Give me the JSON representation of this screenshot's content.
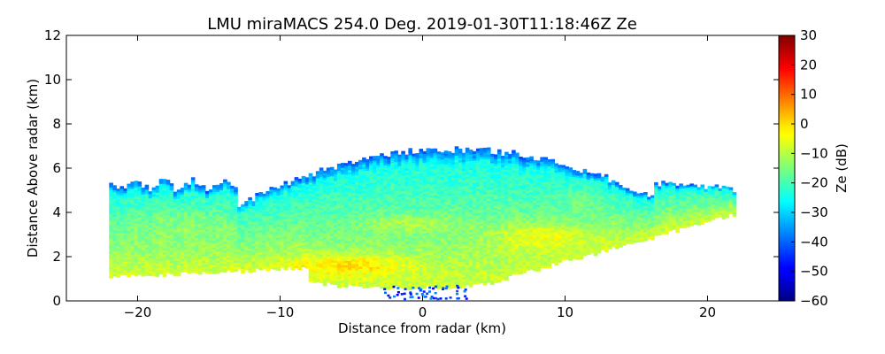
{
  "chart_data": {
    "type": "heatmap",
    "title": "LMU miraMACS 254.0 Deg. 2019-01-30T11:18:46Z  Ze",
    "xlabel": "Distance from radar (km)",
    "ylabel": "Distance Above radar  (km)",
    "xlim": [
      -25,
      25
    ],
    "ylim": [
      0,
      12
    ],
    "xticks": [
      -20,
      -10,
      0,
      10,
      20
    ],
    "yticks": [
      0,
      2,
      4,
      6,
      8,
      10,
      12
    ],
    "colorbar": {
      "label": "Ze (dB)",
      "range": [
        -60,
        30
      ],
      "ticks": [
        30,
        20,
        10,
        0,
        -10,
        -20,
        -30,
        -40,
        -50,
        -60
      ],
      "colormap": "jet"
    },
    "echo_region": {
      "description_units": "km",
      "left_edge_x": -22,
      "right_edge_x": 21.8,
      "top_height": 6.8,
      "bottom_height_at_center": 0.6,
      "slanted_base_right_start_x": 5,
      "slanted_base_right_end_height": 3.9,
      "typical_reflectivity_dB": [
        -25,
        -5
      ],
      "max_reflectivity_dB": 5,
      "cloud_top_reflectivity_dB": -40
    }
  }
}
